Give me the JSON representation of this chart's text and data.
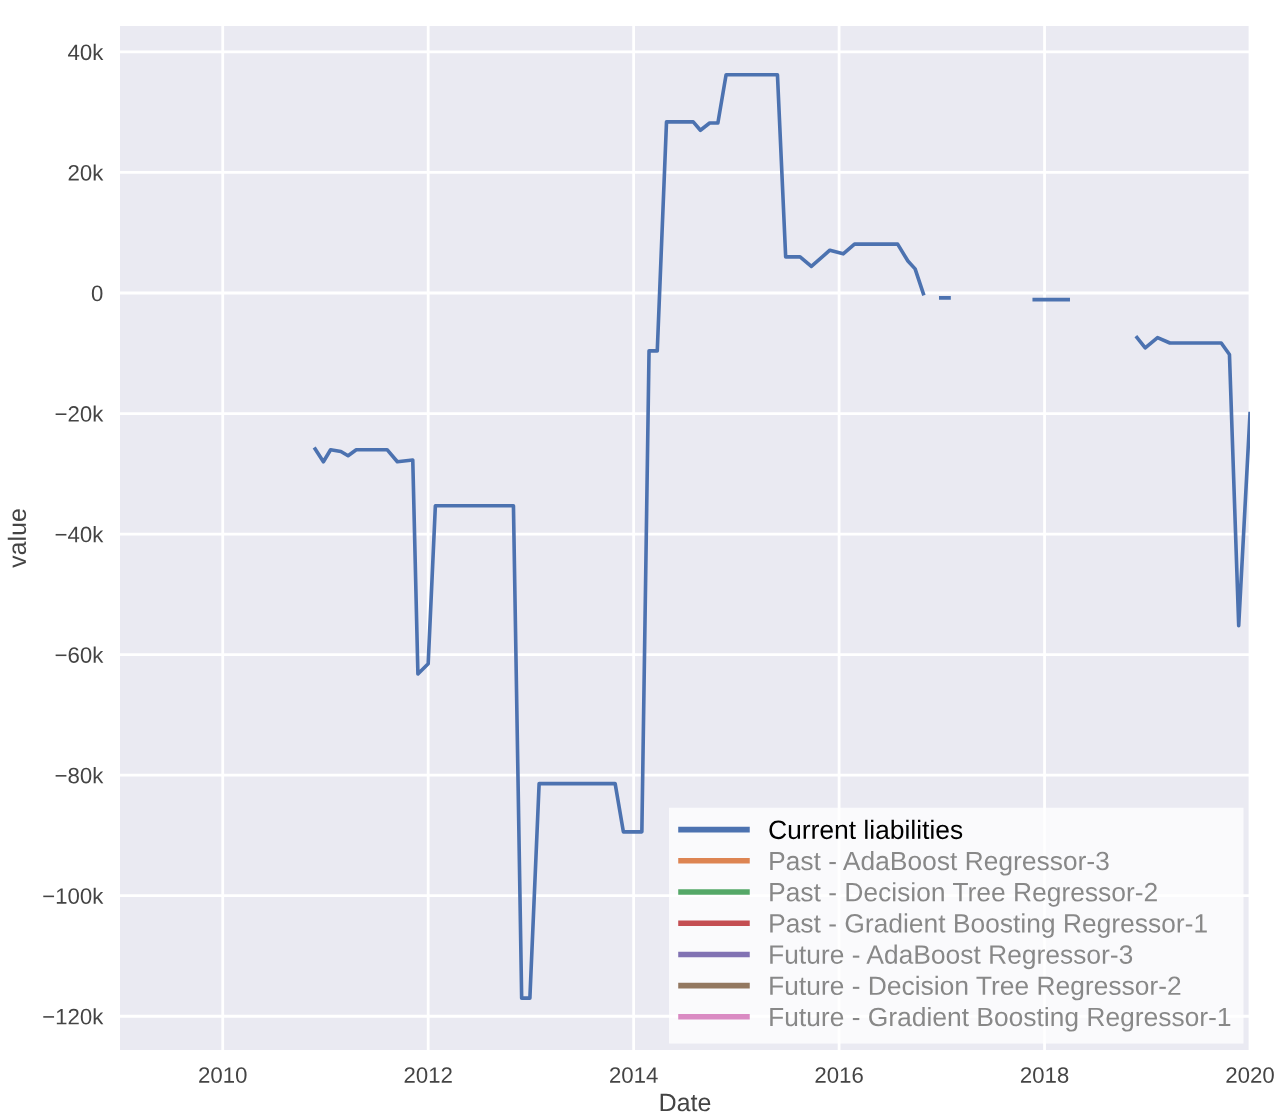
{
  "chart_data": {
    "type": "line",
    "xlabel": "Date",
    "ylabel": "value",
    "x": [
      2010.9,
      2010.98,
      2011.05,
      2011.15,
      2011.22,
      2011.3,
      2011.6,
      2011.7,
      2011.85,
      2011.9,
      2012.0,
      2012.07,
      2012.83,
      2012.91,
      2012.99,
      2013.08,
      2013.82,
      2013.9,
      2014.08,
      2014.15,
      2014.23,
      2014.32,
      2014.58,
      2014.65,
      2014.74,
      2014.82,
      2014.9,
      2015.4,
      2015.48,
      2015.62,
      2015.73,
      2015.91,
      2016.04,
      2016.15,
      2016.57,
      2016.67,
      2016.74,
      2016.82,
      2016.9,
      2016.99,
      2017.07,
      2017.5,
      2017.9,
      2018.23,
      2018.6,
      2018.9,
      2018.98,
      2019.1,
      2019.22,
      2019.72,
      2019.8,
      2019.89,
      2020.0
    ],
    "series": [
      {
        "name": "Current liabilities",
        "color": "#4c72b0",
        "values": [
          -25900,
          -28000,
          -26000,
          -26300,
          -27000,
          -26000,
          -26000,
          -28000,
          -27700,
          -63200,
          -61500,
          -35300,
          -35300,
          -117000,
          -117000,
          -81400,
          -81400,
          -89400,
          -89400,
          -9600,
          -9600,
          28400,
          28400,
          27000,
          28200,
          28200,
          36200,
          36200,
          6000,
          6000,
          4400,
          7100,
          6500,
          8100,
          8100,
          5300,
          4000,
          -100,
          null,
          -800,
          -800,
          null,
          -1100,
          -1100,
          null,
          -7400,
          -9100,
          -7400,
          -8300,
          -8300,
          -10200,
          -55200,
          -20000
        ]
      },
      {
        "name": "Past - AdaBoost Regressor-3",
        "color": "#dd8452",
        "values": [
          null,
          null,
          null,
          null,
          null,
          null,
          null,
          null,
          null,
          null,
          null,
          null,
          null,
          null,
          null,
          null,
          null,
          null,
          null,
          null,
          null,
          null,
          null,
          null,
          null,
          null,
          null,
          null,
          null,
          null,
          null,
          null,
          null,
          null,
          null,
          null,
          null,
          null,
          null,
          null,
          null,
          null,
          null,
          null,
          null,
          null,
          null,
          null,
          null,
          null,
          null,
          null,
          null
        ]
      },
      {
        "name": "Past - Decision Tree Regressor-2",
        "color": "#55a868",
        "values": [
          null,
          null,
          null,
          null,
          null,
          null,
          null,
          null,
          null,
          null,
          null,
          null,
          null,
          null,
          null,
          null,
          null,
          null,
          null,
          null,
          null,
          null,
          null,
          null,
          null,
          null,
          null,
          null,
          null,
          null,
          null,
          null,
          null,
          null,
          null,
          null,
          null,
          null,
          null,
          null,
          null,
          null,
          null,
          null,
          null,
          null,
          null,
          null,
          null,
          null,
          null,
          null,
          null
        ]
      },
      {
        "name": "Past - Gradient Boosting Regressor-1",
        "color": "#c44e52",
        "values": [
          null,
          null,
          null,
          null,
          null,
          null,
          null,
          null,
          null,
          null,
          null,
          null,
          null,
          null,
          null,
          null,
          null,
          null,
          null,
          null,
          null,
          null,
          null,
          null,
          null,
          null,
          null,
          null,
          null,
          null,
          null,
          null,
          null,
          null,
          null,
          null,
          null,
          null,
          null,
          null,
          null,
          null,
          null,
          null,
          null,
          null,
          null,
          null,
          null,
          null,
          null,
          null,
          null
        ]
      },
      {
        "name": "Future - AdaBoost Regressor-3",
        "color": "#8172b3",
        "values": [
          null,
          null,
          null,
          null,
          null,
          null,
          null,
          null,
          null,
          null,
          null,
          null,
          null,
          null,
          null,
          null,
          null,
          null,
          null,
          null,
          null,
          null,
          null,
          null,
          null,
          null,
          null,
          null,
          null,
          null,
          null,
          null,
          null,
          null,
          null,
          null,
          null,
          null,
          null,
          null,
          null,
          null,
          null,
          null,
          null,
          null,
          null,
          null,
          null,
          null,
          null,
          null,
          null
        ]
      },
      {
        "name": "Future - Decision Tree Regressor-2",
        "color": "#937860",
        "values": [
          null,
          null,
          null,
          null,
          null,
          null,
          null,
          null,
          null,
          null,
          null,
          null,
          null,
          null,
          null,
          null,
          null,
          null,
          null,
          null,
          null,
          null,
          null,
          null,
          null,
          null,
          null,
          null,
          null,
          null,
          null,
          null,
          null,
          null,
          null,
          null,
          null,
          null,
          null,
          null,
          null,
          null,
          null,
          null,
          null,
          null,
          null,
          null,
          null,
          null,
          null,
          null,
          null
        ]
      },
      {
        "name": "Future - Gradient Boosting Regressor-1",
        "color": "#da8bc3",
        "values": [
          null,
          null,
          null,
          null,
          null,
          null,
          null,
          null,
          null,
          null,
          null,
          null,
          null,
          null,
          null,
          null,
          null,
          null,
          null,
          null,
          null,
          null,
          null,
          null,
          null,
          null,
          null,
          null,
          null,
          null,
          null,
          null,
          null,
          null,
          null,
          null,
          null,
          null,
          null,
          null,
          null,
          null,
          null,
          null,
          null,
          null,
          null,
          null,
          null,
          null,
          null,
          null,
          null
        ]
      }
    ],
    "xlim": [
      2009,
      2020
    ],
    "xticks": [
      2010,
      2012,
      2014,
      2016,
      2018,
      2020
    ],
    "ylim": [
      -125600,
      44300
    ],
    "yticks": [
      {
        "value": -120000,
        "label": "−120k"
      },
      {
        "value": -100000,
        "label": "−100k"
      },
      {
        "value": -80000,
        "label": "−80k"
      },
      {
        "value": -60000,
        "label": "−60k"
      },
      {
        "value": -40000,
        "label": "−40k"
      },
      {
        "value": -20000,
        "label": "−20k"
      },
      {
        "value": 0,
        "label": "0"
      },
      {
        "value": 20000,
        "label": "20k"
      },
      {
        "value": 40000,
        "label": "40k"
      }
    ],
    "grid": true,
    "legend": "bottom right",
    "marker": "none",
    "line_style": "solid"
  }
}
